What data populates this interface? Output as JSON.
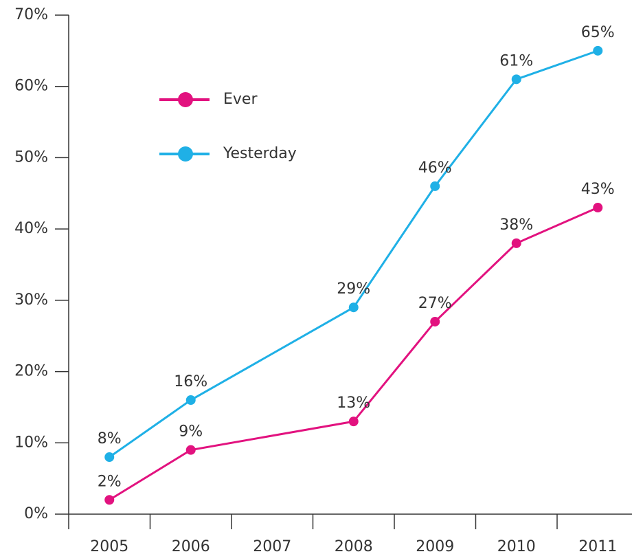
{
  "chart_data": {
    "type": "line",
    "x": [
      2005,
      2006,
      2008,
      2009,
      2010,
      2011
    ],
    "xlim": [
      2004.5,
      2011.42
    ],
    "xticks": [
      2005,
      2006,
      2007,
      2008,
      2009,
      2010,
      2011
    ],
    "ylim": [
      0,
      70
    ],
    "yticks": [
      {
        "value": 0,
        "label": "0%"
      },
      {
        "value": 10,
        "label": "10%"
      },
      {
        "value": 20,
        "label": "20%"
      },
      {
        "value": 30,
        "label": "30%"
      },
      {
        "value": 40,
        "label": "40%"
      },
      {
        "value": 50,
        "label": "50%"
      },
      {
        "value": 60,
        "label": "60%"
      },
      {
        "value": 70,
        "label": "70%"
      }
    ],
    "legend": "upper left",
    "series": [
      {
        "name": "Ever",
        "color": "#e2127f",
        "values": [
          2,
          9,
          13,
          27,
          38,
          43
        ],
        "value_labels": [
          "2%",
          "9%",
          "13%",
          "27%",
          "38%",
          "43%"
        ]
      },
      {
        "name": "Yesterday",
        "color": "#1fb0e6",
        "values": [
          8,
          16,
          29,
          46,
          61,
          65
        ],
        "value_labels": [
          "8%",
          "16%",
          "29%",
          "46%",
          "61%",
          "65%"
        ]
      }
    ]
  }
}
